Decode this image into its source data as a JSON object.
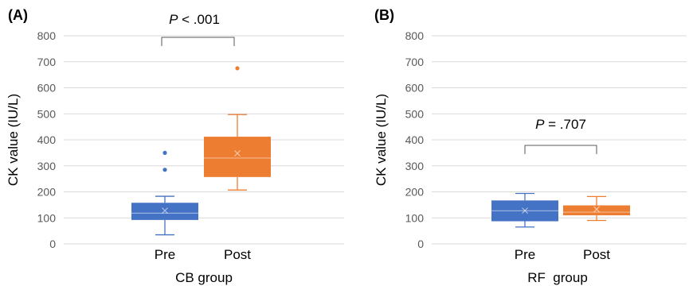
{
  "chart_data": [
    {
      "type": "box",
      "panel_label": "(A)",
      "xlabel": "CB group",
      "ylabel": "CK value (IU/L)",
      "ylim": [
        0,
        800
      ],
      "yticks": [
        0,
        100,
        200,
        300,
        400,
        500,
        600,
        700,
        800
      ],
      "grid": true,
      "annotation": {
        "p_symbol": "P",
        "p_rest": " < .001"
      },
      "categories": [
        "Pre",
        "Post"
      ],
      "boxes": [
        {
          "category": "Pre",
          "color": "#4472C4",
          "min": 35,
          "q1": 92,
          "median": 118,
          "q3": 158,
          "max": 183,
          "mean": 128,
          "outliers": [
            285,
            350
          ]
        },
        {
          "category": "Post",
          "color": "#ED7D31",
          "min": 207,
          "q1": 257,
          "median": 330,
          "q3": 412,
          "max": 497,
          "mean": 348,
          "outliers": [
            675
          ]
        }
      ]
    },
    {
      "type": "box",
      "panel_label": "(B)",
      "xlabel": "RF  group",
      "ylabel": "CK value (IU/L)",
      "ylim": [
        0,
        800
      ],
      "yticks": [
        0,
        100,
        200,
        300,
        400,
        500,
        600,
        700,
        800
      ],
      "grid": true,
      "annotation": {
        "p_symbol": "P",
        "p_rest": " = .707"
      },
      "categories": [
        "Pre",
        "Post"
      ],
      "boxes": [
        {
          "category": "Pre",
          "color": "#4472C4",
          "min": 65,
          "q1": 87,
          "median": 127,
          "q3": 167,
          "max": 194,
          "mean": 128,
          "outliers": []
        },
        {
          "category": "Post",
          "color": "#ED7D31",
          "min": 90,
          "q1": 110,
          "median": 122,
          "q3": 148,
          "max": 182,
          "mean": 133,
          "outliers": []
        }
      ]
    }
  ]
}
